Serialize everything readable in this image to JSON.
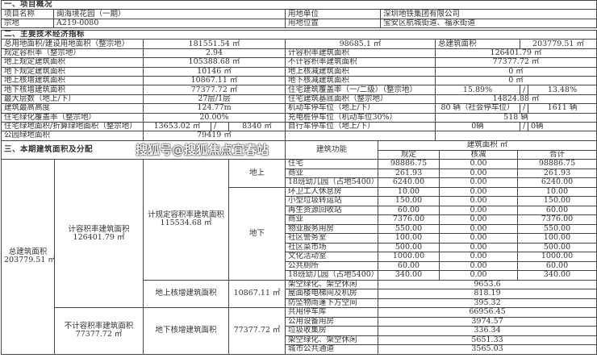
{
  "s1": {
    "title": "一、项目概况",
    "name_label": "项目名称",
    "name": "闽海境花园（一期）",
    "unit_label": "用地单位",
    "unit": "深圳地铁集团有限公司",
    "plot_label": "宗地",
    "plot": "A219-0080",
    "loc_label": "用地位置",
    "loc": "宝安区航城街道、福永街道"
  },
  "s2": {
    "title": "二、主要技术经济指标",
    "left": [
      {
        "l": "总用地面积/建设用地面积（整宗地）",
        "a": "181551.54 ㎡",
        "b": "98685.1 ㎡"
      },
      {
        "l": "规定容积率（整宗地）",
        "v": "2.94"
      },
      {
        "l": "地上规定建筑面积",
        "v": "105388.68 ㎡"
      },
      {
        "l": "地下规定建筑面积",
        "v": "10146 ㎡"
      },
      {
        "l": "地上核增建筑面积",
        "v": "10867.11 ㎡"
      },
      {
        "l": "地下核增建筑面积",
        "v": "77377.72 ㎡"
      },
      {
        "l": "最大层数（地上/下）",
        "v": "27层/1层"
      },
      {
        "l": "建筑最高高度",
        "v": "124.77m"
      },
      {
        "l": "住宅绿化覆盖率（整宗地）",
        "v": "20.00%"
      },
      {
        "l": "住宅绿地面积/折算绿地面积（整宗地）",
        "a": "13653.02 ㎡",
        "b": "8340 ㎡"
      },
      {
        "l": "公园绿地面积",
        "v": "79419 ㎡"
      }
    ],
    "right": [
      {
        "l": "总建筑面积",
        "v": "203779.51 ㎡"
      },
      {
        "l": "计容积率建筑面积",
        "v": "126401.79 ㎡"
      },
      {
        "l": "不计容积率建筑面积",
        "v": "77377.72 ㎡"
      },
      {
        "l": "地上核减建筑面积",
        "v": "0 ㎡"
      },
      {
        "l": "地下核减建筑面积",
        "v": "0 ㎡"
      },
      {
        "l": "住宅建筑覆盖率（一/二级）（整宗地）",
        "a": "15.89%",
        "b": "13.48%"
      },
      {
        "l": "住宅建筑基底面积（整宗地）",
        "v": "14824.88 ㎡"
      },
      {
        "l": "机动车停车位（地上/下）",
        "a": "80 辆（社会停车位）",
        "b": "1611 辆"
      },
      {
        "l": "充电桩停车位（机动车位30%）",
        "v": "518 辆"
      },
      {
        "l": "自行车停车位（地上/下）",
        "a": "0辆",
        "b": "0辆"
      },
      {
        "l": "",
        "v": ""
      }
    ],
    "slash": "/"
  },
  "s3": {
    "title": "三、本期建筑面积及分配",
    "func": "建筑功能",
    "area": "建筑面积 ㎡",
    "c1": "规定",
    "c2": "核减",
    "c3": "合计",
    "total_label": "总建筑面积",
    "total": "203779.51 ㎡",
    "jr_label": "计容积率建筑面积",
    "jr": "126401.79 ㎡",
    "bjr_label": "不计容积率建筑面积",
    "bjr": "77377.72 ㎡",
    "gd_label": "计规定容积率建筑面积",
    "gd": "115534.68 ㎡",
    "above": "地上",
    "below": "地下",
    "hz_up_label": "地上核增建筑面积",
    "hz_up": "10867.11 ㎡",
    "hz_dn_label": "地下核增建筑面积",
    "hz_dn": "77377.72 ㎡",
    "rows": [
      [
        "住宅",
        "98886.75",
        "0.00",
        "98886.75"
      ],
      [
        "商业",
        "261.93",
        "0.00",
        "261.93"
      ],
      [
        "18班幼儿园（占地5400）",
        "6240.00",
        "0.00",
        "6240.00"
      ],
      [
        "环卫工人休息房",
        "10.00",
        "0.00",
        "10.00"
      ],
      [
        "小型垃圾转运站",
        "150.00",
        "0.00",
        "150.00"
      ],
      [
        "再生资源回收站",
        "60.00",
        "0.00",
        "60.00"
      ],
      [
        "商业",
        "7376.00",
        "0.00",
        "7376.00"
      ],
      [
        "物业服务用房",
        "550.00",
        "0.00",
        "550.00"
      ],
      [
        "社区警务室",
        "100.00",
        "0.00",
        "100.00"
      ],
      [
        "社区菜市场",
        "500.00",
        "0.00",
        "500.00"
      ],
      [
        "文化活动室",
        "1000.00",
        "0.00",
        "1000.00"
      ],
      [
        "公共厕所",
        "60.00",
        "0.00",
        "60.00"
      ],
      [
        "18班幼儿园（占地5400）",
        "340.00",
        "0.00",
        "340.00"
      ]
    ],
    "merged": [
      [
        "架空绿化、架空休闲",
        "9653.6"
      ],
      [
        "屋面楼电梯间及机房",
        "818.19"
      ],
      [
        "防坠物雨蓬下方空间",
        "395.32"
      ],
      [
        "共用停车库",
        "66956.45"
      ],
      [
        "公用设备用房",
        "3974.57"
      ],
      [
        "垃圾收集房",
        "336.34"
      ],
      [
        "架空绿化、架空休闲",
        "5651.33"
      ],
      [
        "城市公共通道",
        "3565.03"
      ]
    ]
  },
  "watermark": "搜狐号@搜狐焦点宜春站"
}
